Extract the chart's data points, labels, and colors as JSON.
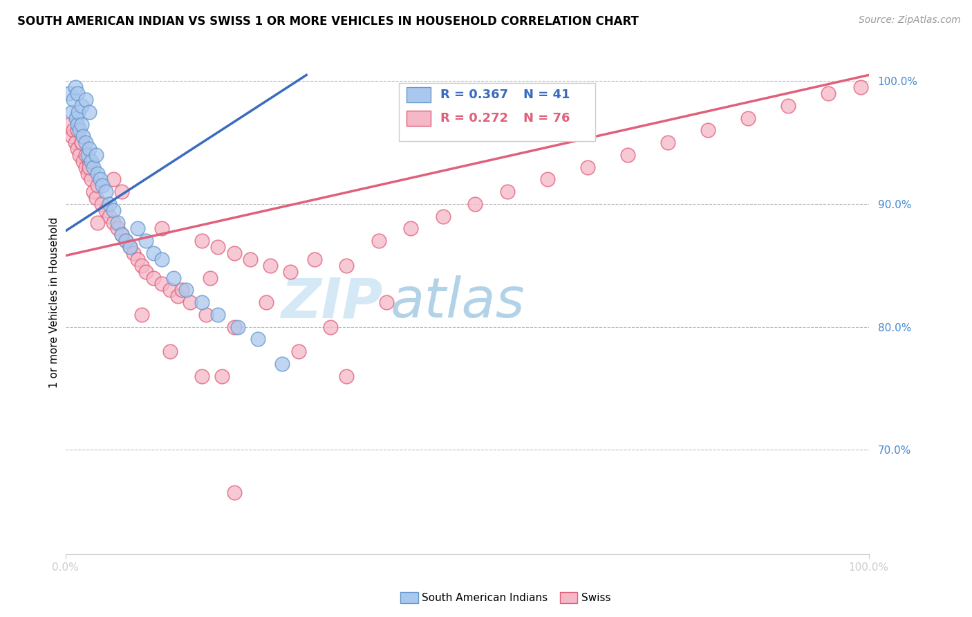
{
  "title": "SOUTH AMERICAN INDIAN VS SWISS 1 OR MORE VEHICLES IN HOUSEHOLD CORRELATION CHART",
  "source": "Source: ZipAtlas.com",
  "ylabel": "1 or more Vehicles in Household",
  "xlim": [
    0.0,
    1.0
  ],
  "ylim": [
    0.615,
    1.025
  ],
  "ytick_vals": [
    0.7,
    0.8,
    0.9,
    1.0
  ],
  "ytick_labels": [
    "70.0%",
    "80.0%",
    "90.0%",
    "100.0%"
  ],
  "xtick_vals": [
    0.0,
    1.0
  ],
  "xtick_labels": [
    "0.0%",
    "100.0%"
  ],
  "blue_line_x": [
    0.0,
    0.3
  ],
  "blue_line_y": [
    0.878,
    1.005
  ],
  "pink_line_x": [
    0.0,
    1.0
  ],
  "pink_line_y": [
    0.858,
    1.005
  ],
  "blue_color": "#3a6bbf",
  "pink_color": "#e0607a",
  "blue_face": "#aac8ee",
  "blue_edge": "#6699cc",
  "pink_face": "#f5b8c8",
  "pink_edge": "#e0607a",
  "blue_x": [
    0.005,
    0.008,
    0.01,
    0.012,
    0.013,
    0.015,
    0.016,
    0.018,
    0.02,
    0.022,
    0.025,
    0.028,
    0.03,
    0.032,
    0.035,
    0.038,
    0.04,
    0.043,
    0.046,
    0.05,
    0.055,
    0.06,
    0.065,
    0.07,
    0.075,
    0.08,
    0.09,
    0.1,
    0.11,
    0.12,
    0.135,
    0.15,
    0.17,
    0.19,
    0.215,
    0.24,
    0.27,
    0.015,
    0.02,
    0.025,
    0.03
  ],
  "blue_y": [
    0.99,
    0.975,
    0.985,
    0.995,
    0.97,
    0.965,
    0.975,
    0.96,
    0.965,
    0.955,
    0.95,
    0.94,
    0.945,
    0.935,
    0.93,
    0.94,
    0.925,
    0.92,
    0.915,
    0.91,
    0.9,
    0.895,
    0.885,
    0.875,
    0.87,
    0.865,
    0.88,
    0.87,
    0.86,
    0.855,
    0.84,
    0.83,
    0.82,
    0.81,
    0.8,
    0.79,
    0.77,
    0.99,
    0.98,
    0.985,
    0.975
  ],
  "pink_x": [
    0.005,
    0.008,
    0.01,
    0.012,
    0.015,
    0.018,
    0.02,
    0.022,
    0.025,
    0.028,
    0.03,
    0.032,
    0.035,
    0.038,
    0.04,
    0.045,
    0.05,
    0.055,
    0.06,
    0.065,
    0.07,
    0.075,
    0.08,
    0.085,
    0.09,
    0.095,
    0.1,
    0.11,
    0.12,
    0.13,
    0.14,
    0.155,
    0.17,
    0.19,
    0.21,
    0.23,
    0.255,
    0.28,
    0.31,
    0.35,
    0.39,
    0.43,
    0.47,
    0.51,
    0.55,
    0.6,
    0.65,
    0.7,
    0.75,
    0.8,
    0.85,
    0.9,
    0.95,
    0.99,
    0.015,
    0.02,
    0.025,
    0.03,
    0.06,
    0.07,
    0.12,
    0.18,
    0.25,
    0.33,
    0.4,
    0.145,
    0.175,
    0.21,
    0.095,
    0.04,
    0.17,
    0.29,
    0.195,
    0.13,
    0.35,
    0.21
  ],
  "pink_y": [
    0.965,
    0.955,
    0.96,
    0.95,
    0.945,
    0.94,
    0.95,
    0.935,
    0.93,
    0.925,
    0.935,
    0.92,
    0.91,
    0.905,
    0.915,
    0.9,
    0.895,
    0.89,
    0.885,
    0.88,
    0.875,
    0.87,
    0.865,
    0.86,
    0.855,
    0.85,
    0.845,
    0.84,
    0.835,
    0.83,
    0.825,
    0.82,
    0.87,
    0.865,
    0.86,
    0.855,
    0.85,
    0.845,
    0.855,
    0.85,
    0.87,
    0.88,
    0.89,
    0.9,
    0.91,
    0.92,
    0.93,
    0.94,
    0.95,
    0.96,
    0.97,
    0.98,
    0.99,
    0.995,
    0.96,
    0.95,
    0.94,
    0.93,
    0.92,
    0.91,
    0.88,
    0.84,
    0.82,
    0.8,
    0.82,
    0.83,
    0.81,
    0.8,
    0.81,
    0.885,
    0.76,
    0.78,
    0.76,
    0.78,
    0.76,
    0.665
  ],
  "background_color": "#ffffff",
  "watermark_zip_color": "#cce0f5",
  "watermark_atlas_color": "#99bbdd",
  "title_fontsize": 12,
  "source_fontsize": 10,
  "tick_color": "#4488cc",
  "tick_fontsize": 11
}
